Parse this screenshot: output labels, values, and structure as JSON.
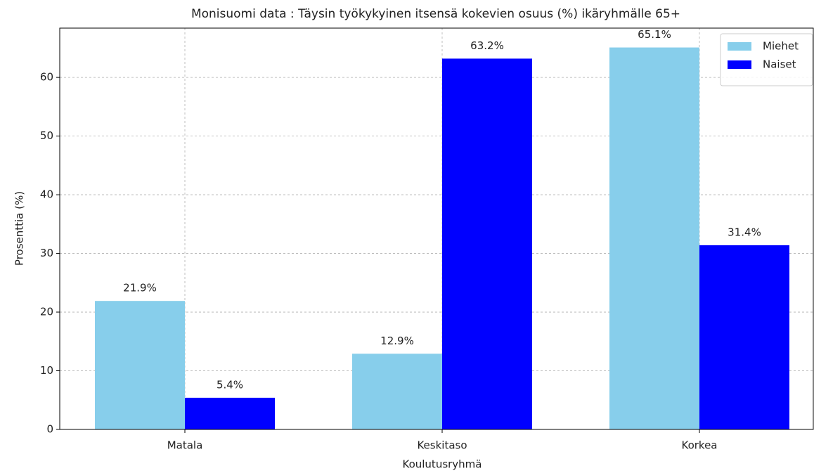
{
  "chart_data": {
    "type": "bar",
    "title": "Monisuomi data : Täysin työkykyinen itsensä kokevien osuus (%) ikäryhmälle 65+",
    "x_label": "Koulutusryhmä",
    "y_label": "Prosenttia (%)",
    "categories": [
      "Matala",
      "Keskitaso",
      "Korkea"
    ],
    "series": [
      {
        "name": "Miehet",
        "color": "#87ceeb",
        "values": [
          21.9,
          12.9,
          65.1
        ],
        "value_labels": [
          "21.9%",
          "12.9%",
          "65.1%"
        ]
      },
      {
        "name": "Naiset",
        "color": "#0000ff",
        "values": [
          5.4,
          63.2,
          31.4
        ],
        "value_labels": [
          "5.4%",
          "63.2%",
          "31.4%"
        ]
      }
    ],
    "ylim": [
      0,
      68.4
    ],
    "yticks": [
      0,
      10,
      20,
      30,
      40,
      50,
      60
    ],
    "grid": true,
    "legend": "upper right"
  }
}
